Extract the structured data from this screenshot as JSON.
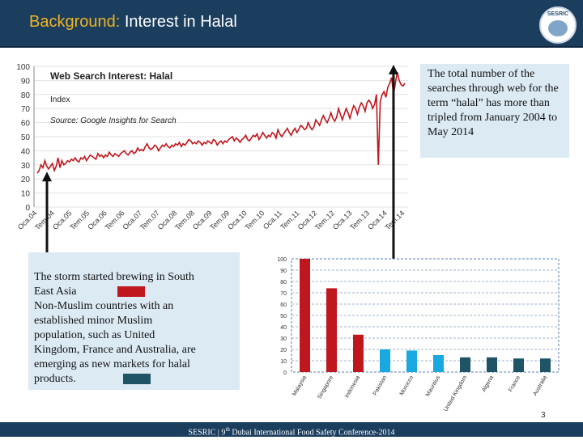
{
  "header": {
    "title_lead": "Background:",
    "title_rest": " Interest in Halal",
    "logo_text": "SESRIC"
  },
  "callouts": {
    "top": "The total number of the searches through web for the term “halal” has more than tripled from January 2004 to May 2014",
    "bottom_lines": [
      "The storm started brewing in South",
      "East Asia",
      "Non-Muslim countries with an",
      "established minor Muslim",
      "population, such as United",
      "Kingdom, France and Australia, are",
      "emerging as new markets for halal",
      "products."
    ]
  },
  "footer": {
    "text_pre": "SESRIC | 9",
    "text_sup": "th",
    "text_post": " Dubai International Food Safety Conference-2014",
    "page_number": "3"
  },
  "colors": {
    "header_bg": "#1b3d5e",
    "title_accent": "#f2b51f",
    "line_series": "#c0161d",
    "callout_bg": "#dceaf3",
    "bar_southeast_asia": "#c0161d",
    "bar_muslim_other": "#19a8e0",
    "bar_nonmuslim": "#1e5466"
  },
  "chart_data": [
    {
      "type": "line",
      "title": "Web Search Interest: Halal",
      "subtitle": "Index",
      "source": "Source: Google Insights for Search",
      "ylim": [
        0,
        100
      ],
      "yticks": [
        0,
        10,
        20,
        30,
        40,
        50,
        60,
        70,
        80,
        90,
        100
      ],
      "x_tick_labels": [
        "Oca.04",
        "Tem.04",
        "Oca.05",
        "Tem.05",
        "Oca.06",
        "Tem.06",
        "Oca.07",
        "Tem.07",
        "Oca.08",
        "Tem.08",
        "Oca.09",
        "Tem.09",
        "Oca.10",
        "Tem.10",
        "Oca.11",
        "Tem.11",
        "Oca.12",
        "Tem.12",
        "Oca.13",
        "Tem.13",
        "Oca.14",
        "Tem.14"
      ],
      "series": [
        {
          "values": [
            24,
            26,
            30,
            28,
            33,
            29,
            27,
            29,
            31,
            26,
            29,
            35,
            28,
            33,
            30,
            31,
            33,
            32,
            34,
            33,
            35,
            33,
            32,
            35,
            34,
            36,
            33,
            35,
            37,
            36,
            35,
            34,
            38,
            36,
            37,
            35,
            37,
            36,
            39,
            37,
            36,
            38,
            37,
            36,
            38,
            39,
            40,
            38,
            37,
            39,
            40,
            38,
            39,
            42,
            40,
            41,
            40,
            43,
            45,
            42,
            41,
            42,
            44,
            43,
            40,
            42,
            44,
            43,
            45,
            43,
            42,
            44,
            43,
            45,
            44,
            46,
            43,
            45,
            44,
            46,
            48,
            47,
            45,
            46,
            45,
            47,
            46,
            44,
            46,
            45,
            47,
            46,
            45,
            48,
            47,
            44,
            46,
            47,
            45,
            47,
            46,
            48,
            49,
            50,
            47,
            49,
            48,
            46,
            48,
            49,
            51,
            48,
            47,
            49,
            51,
            50,
            52,
            48,
            50,
            53,
            51,
            49,
            51,
            50,
            53,
            52,
            49,
            55,
            52,
            50,
            52,
            54,
            56,
            53,
            51,
            54,
            56,
            53,
            55,
            58,
            57,
            55,
            56,
            60,
            57,
            55,
            57,
            62,
            60,
            58,
            62,
            65,
            62,
            60,
            63,
            67,
            63,
            61,
            64,
            70,
            66,
            62,
            66,
            70,
            67,
            63,
            68,
            72,
            70,
            66,
            71,
            74,
            72,
            68,
            74,
            76,
            74,
            70,
            73,
            80,
            30,
            75,
            80,
            82,
            78,
            85,
            88,
            92,
            80,
            88,
            96,
            90,
            87,
            86,
            88
          ]
        }
      ]
    },
    {
      "type": "bar",
      "categories": [
        "Malaysia",
        "Singapore",
        "Indonesia",
        "Pakistan",
        "Morocco",
        "Mauritius",
        "United Kingdom",
        "Algeria",
        "France",
        "Australia"
      ],
      "values": [
        100,
        74,
        33,
        20,
        19,
        15,
        13,
        13,
        12,
        12
      ],
      "ylim": [
        0,
        100
      ],
      "yticks": [
        0,
        10,
        20,
        30,
        40,
        50,
        60,
        70,
        80,
        90,
        100
      ],
      "grid": true
    }
  ]
}
